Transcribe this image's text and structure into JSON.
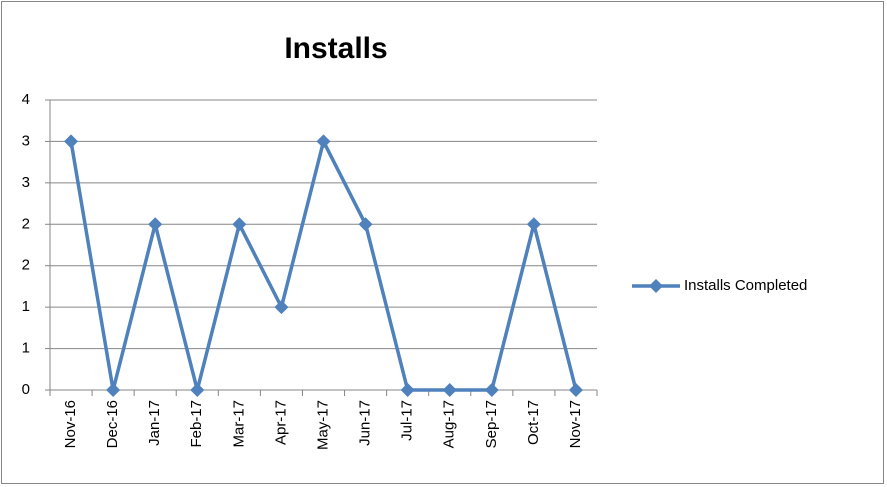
{
  "chart_data": {
    "type": "line",
    "title": "Installs",
    "categories": [
      "Nov-16",
      "Dec-16",
      "Jan-17",
      "Feb-17",
      "Mar-17",
      "Apr-17",
      "May-17",
      "Jun-17",
      "Jul-17",
      "Aug-17",
      "Sep-17",
      "Oct-17",
      "Nov-17"
    ],
    "series": [
      {
        "name": "Installs Completed",
        "color": "#4f81bd",
        "values": [
          3,
          0,
          2,
          0,
          2,
          1,
          3,
          2,
          0,
          0,
          0,
          2,
          0
        ]
      }
    ],
    "ylim": [
      0,
      3.5
    ],
    "yticks": [
      0,
      {
        "value": 0.5,
        "label": "1"
      },
      1,
      {
        "value": 1.5,
        "label": "2"
      },
      2,
      {
        "value": 2.5,
        "label": "3"
      },
      3,
      {
        "value": 3.5,
        "label": "4"
      }
    ],
    "grid": true,
    "legend": "right"
  }
}
